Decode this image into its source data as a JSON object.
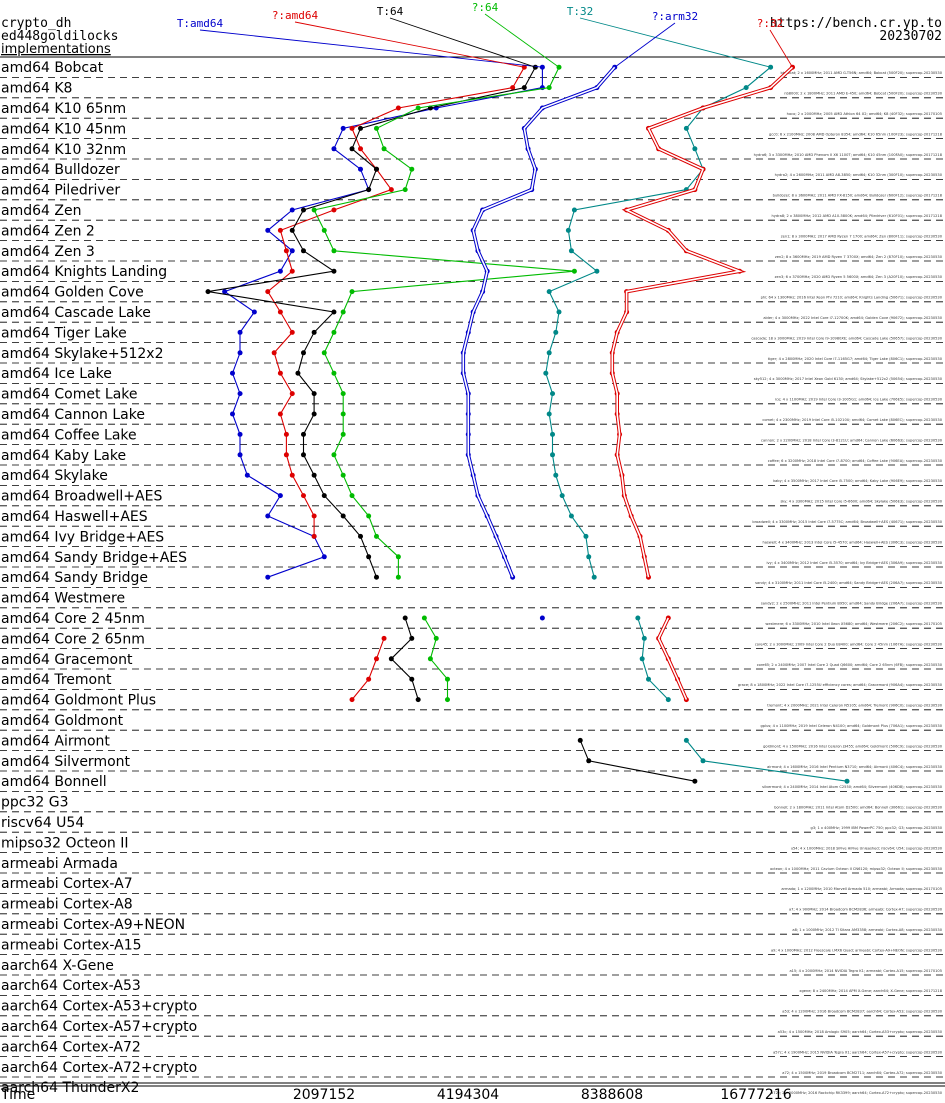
{
  "header": {
    "title_line1": "crypto_dh",
    "title_line2": "ed448goldilocks",
    "title_line3": "implementations",
    "url": "https://bench.cr.yp.to",
    "date": "20230702"
  },
  "colors": {
    "T:amd64": "#0000cc",
    "?:amd64": "#dd0000",
    "T:64": "#000000",
    "?:64": "#00bb00",
    "T:32": "#008888",
    "?:arm32": "#0000cc",
    "?:32": "#dd0000"
  },
  "chart_data": {
    "type": "line",
    "xlabel": "Time",
    "x_scale": "log2",
    "xlim": [
      1048576,
      33554432
    ],
    "x_ticks": [
      2097152,
      4194304,
      8388608,
      16777216
    ],
    "series_labels": [
      "T:amd64",
      "?:amd64",
      "T:64",
      "?:64",
      "T:32",
      "?:arm32",
      "?:32"
    ],
    "categories": [
      "amd64 Bobcat",
      "amd64 K8",
      "amd64 K10 65nm",
      "amd64 K10 45nm",
      "amd64 K10 32nm",
      "amd64 Bulldozer",
      "amd64 Piledriver",
      "amd64 Zen",
      "amd64 Zen 2",
      "amd64 Zen 3",
      "amd64 Knights Landing",
      "amd64 Golden Cove",
      "amd64 Cascade Lake",
      "amd64 Tiger Lake",
      "amd64 Skylake+512x2",
      "amd64 Ice Lake",
      "amd64 Comet Lake",
      "amd64 Cannon Lake",
      "amd64 Coffee Lake",
      "amd64 Kaby Lake",
      "amd64 Skylake",
      "amd64 Broadwell+AES",
      "amd64 Haswell+AES",
      "amd64 Ivy Bridge+AES",
      "amd64 Sandy Bridge+AES",
      "amd64 Sandy Bridge",
      "amd64 Westmere",
      "amd64 Core 2 45nm",
      "amd64 Core 2 65nm",
      "amd64 Gracemont",
      "amd64 Tremont",
      "amd64 Goldmont Plus",
      "amd64 Goldmont",
      "amd64 Airmont",
      "amd64 Silvermont",
      "amd64 Bonnell",
      "ppc32 G3",
      "riscv64 U54",
      "mipso32 Octeon II",
      "armeabi Armada",
      "armeabi Cortex-A7",
      "armeabi Cortex-A8",
      "armeabi Cortex-A9+NEON",
      "armeabi Cortex-A15",
      "aarch64 X-Gene",
      "aarch64 Cortex-A53",
      "aarch64 Cortex-A53+crypto",
      "aarch64 Cortex-A57+crypto",
      "aarch64 Cortex-A72",
      "aarch64 Cortex-A72+crypto",
      "aarch64 ThunderX2"
    ],
    "series": [
      {
        "name": "T:amd64",
        "values": [
          6000000.0,
          6000000.0,
          3600000.0,
          2300000.0,
          2200000.0,
          2500000.0,
          2600000.0,
          1800000.0,
          1600000.0,
          1800000.0,
          1700000.0,
          1300000.0,
          1500000.0,
          1400000.0,
          1400000.0,
          1350000.0,
          1400000.0,
          1350000.0,
          1400000.0,
          1400000.0,
          1450000.0,
          1700000.0,
          1600000.0,
          2000000.0,
          2100000.0,
          1600000.0,
          null,
          null,
          null,
          null,
          null,
          null,
          null,
          null,
          null,
          null,
          null,
          null,
          null,
          null,
          null,
          null,
          null,
          null,
          null,
          null,
          null,
          null,
          null,
          null,
          null
        ]
      },
      {
        "name": "?:amd64",
        "values": [
          5500000.0,
          5200000.0,
          3000000.0,
          2400000.0,
          2500000.0,
          2700000.0,
          2900000.0,
          2200000.0,
          1700000.0,
          1750000.0,
          1800000.0,
          1600000.0,
          1700000.0,
          1800000.0,
          1650000.0,
          1700000.0,
          1800000.0,
          1700000.0,
          1750000.0,
          1750000.0,
          1800000.0,
          1900000.0,
          2000000.0,
          2000000.0,
          null,
          null,
          null,
          null,
          2800000.0,
          2700000.0,
          2600000.0,
          2400000.0,
          null,
          null,
          null,
          null,
          null,
          null,
          null,
          null,
          null,
          null,
          null,
          null,
          null,
          null,
          null,
          null,
          null,
          null,
          null
        ]
      },
      {
        "name": "T:64",
        "values": [
          5800000.0,
          5500000.0,
          3500000.0,
          2500000.0,
          2400000.0,
          2700000.0,
          2600000.0,
          1900000.0,
          1800000.0,
          1900000.0,
          2200000.0,
          1200000.0,
          2200000.0,
          2000000.0,
          1900000.0,
          1850000.0,
          2000000.0,
          2000000.0,
          1900000.0,
          1900000.0,
          2000000.0,
          2100000.0,
          2300000.0,
          2500000.0,
          2600000.0,
          2700000.0,
          null,
          3100000.0,
          3200000.0,
          2900000.0,
          3200000.0,
          3300000.0,
          null,
          7200000.0,
          7500000.0,
          12500000.0,
          null,
          null,
          null,
          null,
          null,
          null,
          null,
          null,
          null,
          null,
          null,
          null,
          null,
          null,
          null
        ]
      },
      {
        "name": "?:64",
        "values": [
          6500000.0,
          6200000.0,
          3300000.0,
          2700000.0,
          2800000.0,
          3200000.0,
          3100000.0,
          2000000.0,
          2100000.0,
          2200000.0,
          7000000.0,
          2400000.0,
          2300000.0,
          2200000.0,
          2100000.0,
          2200000.0,
          2300000.0,
          2300000.0,
          2300000.0,
          2200000.0,
          2300000.0,
          2400000.0,
          2600000.0,
          2700000.0,
          3000000.0,
          3000000.0,
          null,
          3400000.0,
          3600000.0,
          3500000.0,
          3800000.0,
          3800000.0,
          null,
          null,
          null,
          null,
          null,
          null,
          null,
          null,
          null,
          null,
          null,
          null,
          null,
          null,
          null,
          null,
          null,
          null,
          null
        ]
      },
      {
        "name": "T:32",
        "values": [
          18000000.0,
          16000000.0,
          13000000.0,
          12000000.0,
          12500000.0,
          13000000.0,
          12000000.0,
          7000000.0,
          6800000.0,
          6900000.0,
          7800000.0,
          6200000.0,
          6500000.0,
          6400000.0,
          6200000.0,
          6100000.0,
          6300000.0,
          6200000.0,
          6300000.0,
          6300000.0,
          6400000.0,
          6600000.0,
          6900000.0,
          7400000.0,
          7500000.0,
          7700000.0,
          null,
          9500000.0,
          9800000.0,
          9700000.0,
          10000000.0,
          11000000.0,
          null,
          12000000.0,
          13000000.0,
          26000000.0,
          null,
          null,
          null,
          null,
          null,
          null,
          null,
          null,
          null,
          null,
          null,
          null,
          null,
          null,
          null
        ]
      },
      {
        "name": "?:arm32",
        "values": [
          8500000.0,
          7800000.0,
          6000000.0,
          5500000.0,
          5600000.0,
          5800000.0,
          5700000.0,
          4500000.0,
          4300000.0,
          4400000.0,
          4600000.0,
          4500000.0,
          4300000.0,
          4200000.0,
          4100000.0,
          4100000.0,
          4200000.0,
          4200000.0,
          4200000.0,
          4200000.0,
          4300000.0,
          4400000.0,
          4600000.0,
          4800000.0,
          5000000.0,
          5200000.0,
          null,
          6000000.0,
          null,
          null,
          null,
          null,
          null,
          null,
          null,
          null,
          null,
          null,
          null,
          null,
          null,
          null,
          null,
          null,
          null,
          null,
          null,
          null,
          null,
          null,
          null
        ]
      },
      {
        "name": "?:32",
        "values": [
          20000000.0,
          18000000.0,
          13000000.0,
          10000000.0,
          10500000.0,
          13000000.0,
          12500000.0,
          9000000.0,
          11000000.0,
          12000000.0,
          15500000.0,
          9000000.0,
          9000000.0,
          8600000.0,
          8400000.0,
          8400000.0,
          8600000.0,
          8600000.0,
          8700000.0,
          8600000.0,
          8800000.0,
          8900000.0,
          9200000.0,
          9600000.0,
          9800000.0,
          10000000.0,
          null,
          11000000.0,
          10500000.0,
          11000000.0,
          11500000.0,
          12000000.0,
          null,
          null,
          null,
          null,
          null,
          null,
          null,
          null,
          null,
          null,
          null,
          null,
          null,
          null,
          null,
          null,
          null,
          null,
          null
        ]
      }
    ],
    "row_notes": [
      "bbobcat; 2 x 1600MHz; 2011 AMD G-T56N; amd64; Bobcat (500F20); supercop-20230530",
      "nb8000; 2 x 1800MHz; 2011 AMD E-450; amd64; Bobcat (500F20); supercop-20230530",
      "hoco; 2 x 2000MHz; 2005 AMD Athlon 64 X2; amd64; K8 (40F32); supercop-20170105",
      "gcc0; 6 x 2100MHz; 2008 AMD Opteron 8354; amd64; K10 65nm (100F23); supercop-20171218",
      "hydra6; 3 x 3300MHz; 2010 AMD Phenom II X6 1100T; amd64; K10 45nm (100FA0); supercop-20171218",
      "hydra2; 4 x 2600MHz; 2011 AMD A8-3850; amd64; K10 32nm (300F10); supercop-20230530",
      "bulldozer; 8 x 3600MHz; 2011 AMD FX-8150; amd64; Bulldozer (600F12); supercop-20171218",
      "hydra8; 2 x 3800MHz; 2012 AMD A10-5800K; amd64; Piledriver (610F01); supercop-20171218",
      "zen1; 8 x 3000MHz; 2017 AMD Ryzen 7 1700; amd64; Zen (800F11); supercop-20230530",
      "zen2; 8 x 3600MHz; 2019 AMD Ryzen 7 3700X; amd64; Zen 2 (870F10); supercop-20230530",
      "zen3; 6 x 3700MHz; 2020 AMD Ryzen 5 5600X; amd64; Zen 3 (A20F10); supercop-20230530",
      "phi; 64 x 1300MHz; 2016 Intel Xeon Phi 7210; amd64; Knights Landing (50671); supercop-20230530",
      "alder; 4 x 3000MHz; 2022 Intel Core i7-12700K; amd64; Golden Cove (90672); supercop-20230530",
      "cascade; 18 x 3000MHz; 2019 Intel Core i9-10980XE; amd64; Cascade Lake (50657); supercop-20230530",
      "tiger; 4 x 2800MHz; 2020 Intel Core i7-1165G7; amd64; Tiger Lake (806C1); supercop-20230530",
      "sky512; 4 x 3000MHz; 2017 Intel Xeon Gold 6130; amd64; Skylake+512x2 (50654); supercop-20230530",
      "ice; 4 x 1100MHz; 2019 Intel Core i3-1005G1; amd64; Ice Lake (706E5); supercop-20230530",
      "comet; 4 x 2300MHz; 2019 Intel Core i5-10210U; amd64; Comet Lake (806EC); supercop-20230530",
      "cannon; 2 x 2200MHz; 2018 Intel Core i3-8121U; amd64; Cannon Lake (60663); supercop-20230530",
      "coffee; 6 x 3200MHz; 2018 Intel Core i7-8700; amd64; Coffee Lake (906EA); supercop-20230530",
      "kaby; 4 x 3500MHz; 2017 Intel Core i5-7500; amd64; Kaby Lake (906E9); supercop-20230530",
      "sky; 4 x 3300MHz; 2015 Intel Core i5-6600; amd64; Skylake (506E3); supercop-20230530",
      "broadwell; 4 x 3300MHz; 2015 Intel Core i7-5775C; amd64; Broadwell+AES (40671); supercop-20230530",
      "haswell; 4 x 3400MHz; 2013 Intel Core i5-4570; amd64; Haswell+AES (306C3); supercop-20230530",
      "ivy; 4 x 3400MHz; 2012 Intel Core i5-3570; amd64; Ivy Bridge+AES (306A9); supercop-20230530",
      "sandy; 4 x 3100MHz; 2011 Intel Core i5-2400; amd64; Sandy Bridge+AES (206A7); supercop-20230530",
      "sandy2; 2 x 2500MHz; 2011 Intel Pentium B950; amd64; Sandy Bridge (206A7); supercop-20230530",
      "westmere; 6 x 3300MHz; 2010 Intel Xeon X5680; amd64; Westmere (206C2); supercop-20170105",
      "core45; 2 x 3000MHz; 2009 Intel Core 2 Duo E8400; amd64; Core 2 45nm (1067A); supercop-20230530",
      "core65; 2 x 2400MHz; 2007 Intel Core 2 Quad Q6600; amd64; Core 2 65nm (6FB); supercop-20230530",
      "grace; 8 x 1800MHz; 2022 Intel Core i7-1255U efficiency cores; amd64; Gracemont (906A4); supercop-20230530",
      "tremont; 4 x 2000MHz; 2021 Intel Celeron N5105; amd64; Tremont (906C0); supercop-20230530",
      "gplus; 4 x 1100MHz; 2019 Intel Celeron N4100; amd64; Goldmont Plus (706A1); supercop-20230530",
      "goldmont; 4 x 1500MHz; 2016 Intel Celeron J3455; amd64; Goldmont (506C9); supercop-20230530",
      "airmont; 4 x 1600MHz; 2016 Intel Pentium N3710; amd64; Airmont (406C4); supercop-20230530",
      "silvermont; 4 x 2400MHz; 2014 Intel Atom C2550; amd64; Silvermont (406D8); supercop-20230530",
      "bonnell; 2 x 1800MHz; 2011 Intel Atom D2500; amd64; Bonnell (30661); supercop-20230530",
      "g3; 1 x 400MHz; 1999 IBM PowerPC 750; ppc32; G3; supercop-20230530",
      "u54; 4 x 1000MHz; 2018 SiFive HiFive Unleashed; riscv64; U54; supercop-20230530",
      "octeon; 4 x 1000MHz; 2011 Cavium Octeon II CN6120; mipso32; Octeon II; supercop-20230530",
      "armada; 1 x 1200MHz; 2010 Marvell Armada 510; armeabi; Armada; supercop-20170105",
      "a7; 4 x 900MHz; 2014 Broadcom BCM2836; armeabi; Cortex-A7; supercop-20230530",
      "a8; 1 x 1000MHz; 2012 TI Sitara AM3358; armeabi; Cortex-A8; supercop-20230530",
      "a9; 4 x 1000MHz; 2012 Freescale i.MX6 Quad; armeabi; Cortex-A9+NEON; supercop-20230530",
      "a15; 4 x 2000MHz; 2014 NVIDIA Tegra K1; armeabi; Cortex-A15; supercop-20170105",
      "xgene; 8 x 2400MHz; 2014 APM X-Gene; aarch64; X-Gene; supercop-20171218",
      "a53; 4 x 1200MHz; 2016 Broadcom BCM2837; aarch64; Cortex-A53; supercop-20230530",
      "a53c; 4 x 1500MHz; 2018 Amlogic S905; aarch64; Cortex-A53+crypto; supercop-20230530",
      "a57c; 4 x 1900MHz; 2015 NVIDIA Tegra X1; aarch64; Cortex-A57+crypto; supercop-20230530",
      "a72; 4 x 1500MHz; 2019 Broadcom BCM2711; aarch64; Cortex-A72; supercop-20230530",
      "a72c; 2 x 2000MHz; 2016 Rockchip RK3399; aarch64; Cortex-A72+crypto; supercop-20230530",
      "thunderx2; 64 x 2200MHz; 2018 Cavium ThunderX2 CN9975; aarch64; ThunderX2; supercop-20230530"
    ]
  }
}
